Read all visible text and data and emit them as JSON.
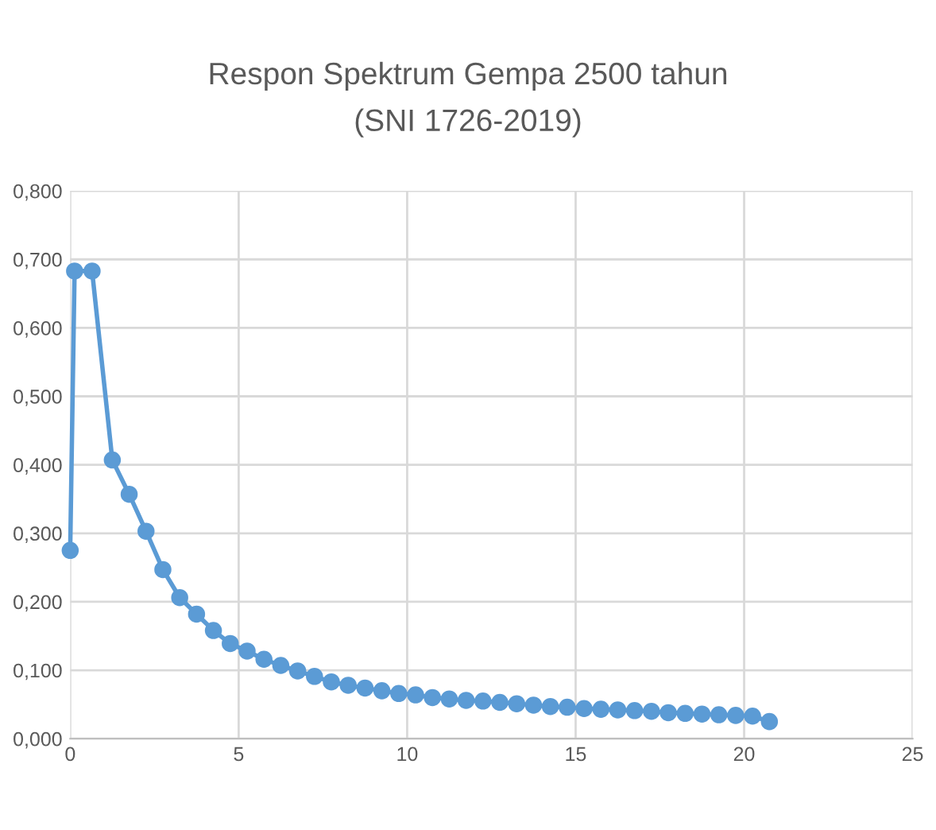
{
  "chart_data": {
    "type": "line",
    "title": "Respon Spektrum Gempa 2500 tahun\n(SNI 1726-2019)",
    "x": [
      0,
      0.13,
      0.65,
      1.25,
      1.75,
      2.25,
      2.75,
      3.25,
      3.75,
      4.25,
      4.75,
      5.25,
      5.75,
      6.25,
      6.75,
      7.25,
      7.75,
      8.25,
      8.75,
      9.25,
      9.75,
      10.25,
      10.75,
      11.25,
      11.75,
      12.25,
      12.75,
      13.25,
      13.75,
      14.25,
      14.75,
      15.25,
      15.75,
      16.25,
      16.75,
      17.25,
      17.75,
      18.25,
      18.75,
      19.25,
      19.75,
      20.25,
      20.75
    ],
    "series": [
      {
        "color": "#5b9bd5",
        "values": [
          0.275,
          0.683,
          0.683,
          0.407,
          0.357,
          0.303,
          0.247,
          0.206,
          0.182,
          0.158,
          0.139,
          0.128,
          0.116,
          0.107,
          0.099,
          0.091,
          0.083,
          0.078,
          0.074,
          0.07,
          0.066,
          0.064,
          0.06,
          0.058,
          0.056,
          0.055,
          0.053,
          0.051,
          0.049,
          0.047,
          0.046,
          0.044,
          0.043,
          0.042,
          0.041,
          0.04,
          0.038,
          0.037,
          0.036,
          0.035,
          0.034,
          0.033,
          0.025
        ]
      }
    ],
    "xlim": [
      0,
      25
    ],
    "xticks": [
      0,
      5,
      10,
      15,
      20,
      25
    ],
    "ylim": [
      0,
      0.8
    ],
    "yticks": [
      {
        "value": 0,
        "label": "0,000"
      },
      {
        "value": 0.1,
        "label": "0,100"
      },
      {
        "value": 0.2,
        "label": "0,200"
      },
      {
        "value": 0.3,
        "label": "0,300"
      },
      {
        "value": 0.4,
        "label": "0,400"
      },
      {
        "value": 0.5,
        "label": "0,500"
      },
      {
        "value": 0.6,
        "label": "0,600"
      },
      {
        "value": 0.7,
        "label": "0,700"
      },
      {
        "value": 0.8,
        "label": "0,800"
      }
    ],
    "grid": true,
    "marker": "circle",
    "line_style": "solid",
    "legend": false
  }
}
